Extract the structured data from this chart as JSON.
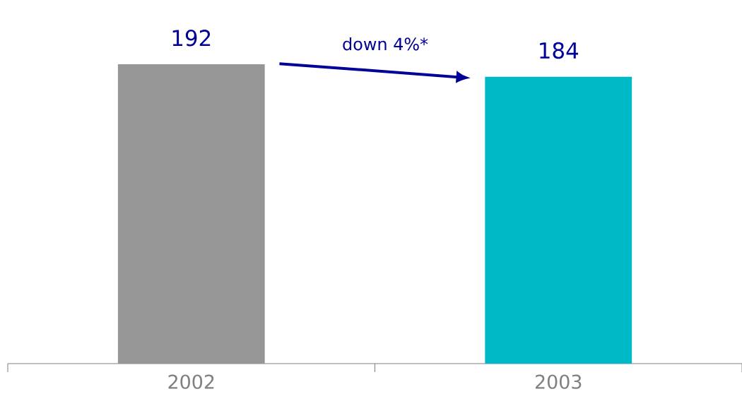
{
  "chart_data": {
    "type": "bar",
    "categories": [
      "2002",
      "2003"
    ],
    "values": [
      192,
      184
    ],
    "colors": [
      "#969696",
      "#00b9c6"
    ],
    "data_labels": true,
    "annotations": [
      "down 4%*"
    ]
  }
}
